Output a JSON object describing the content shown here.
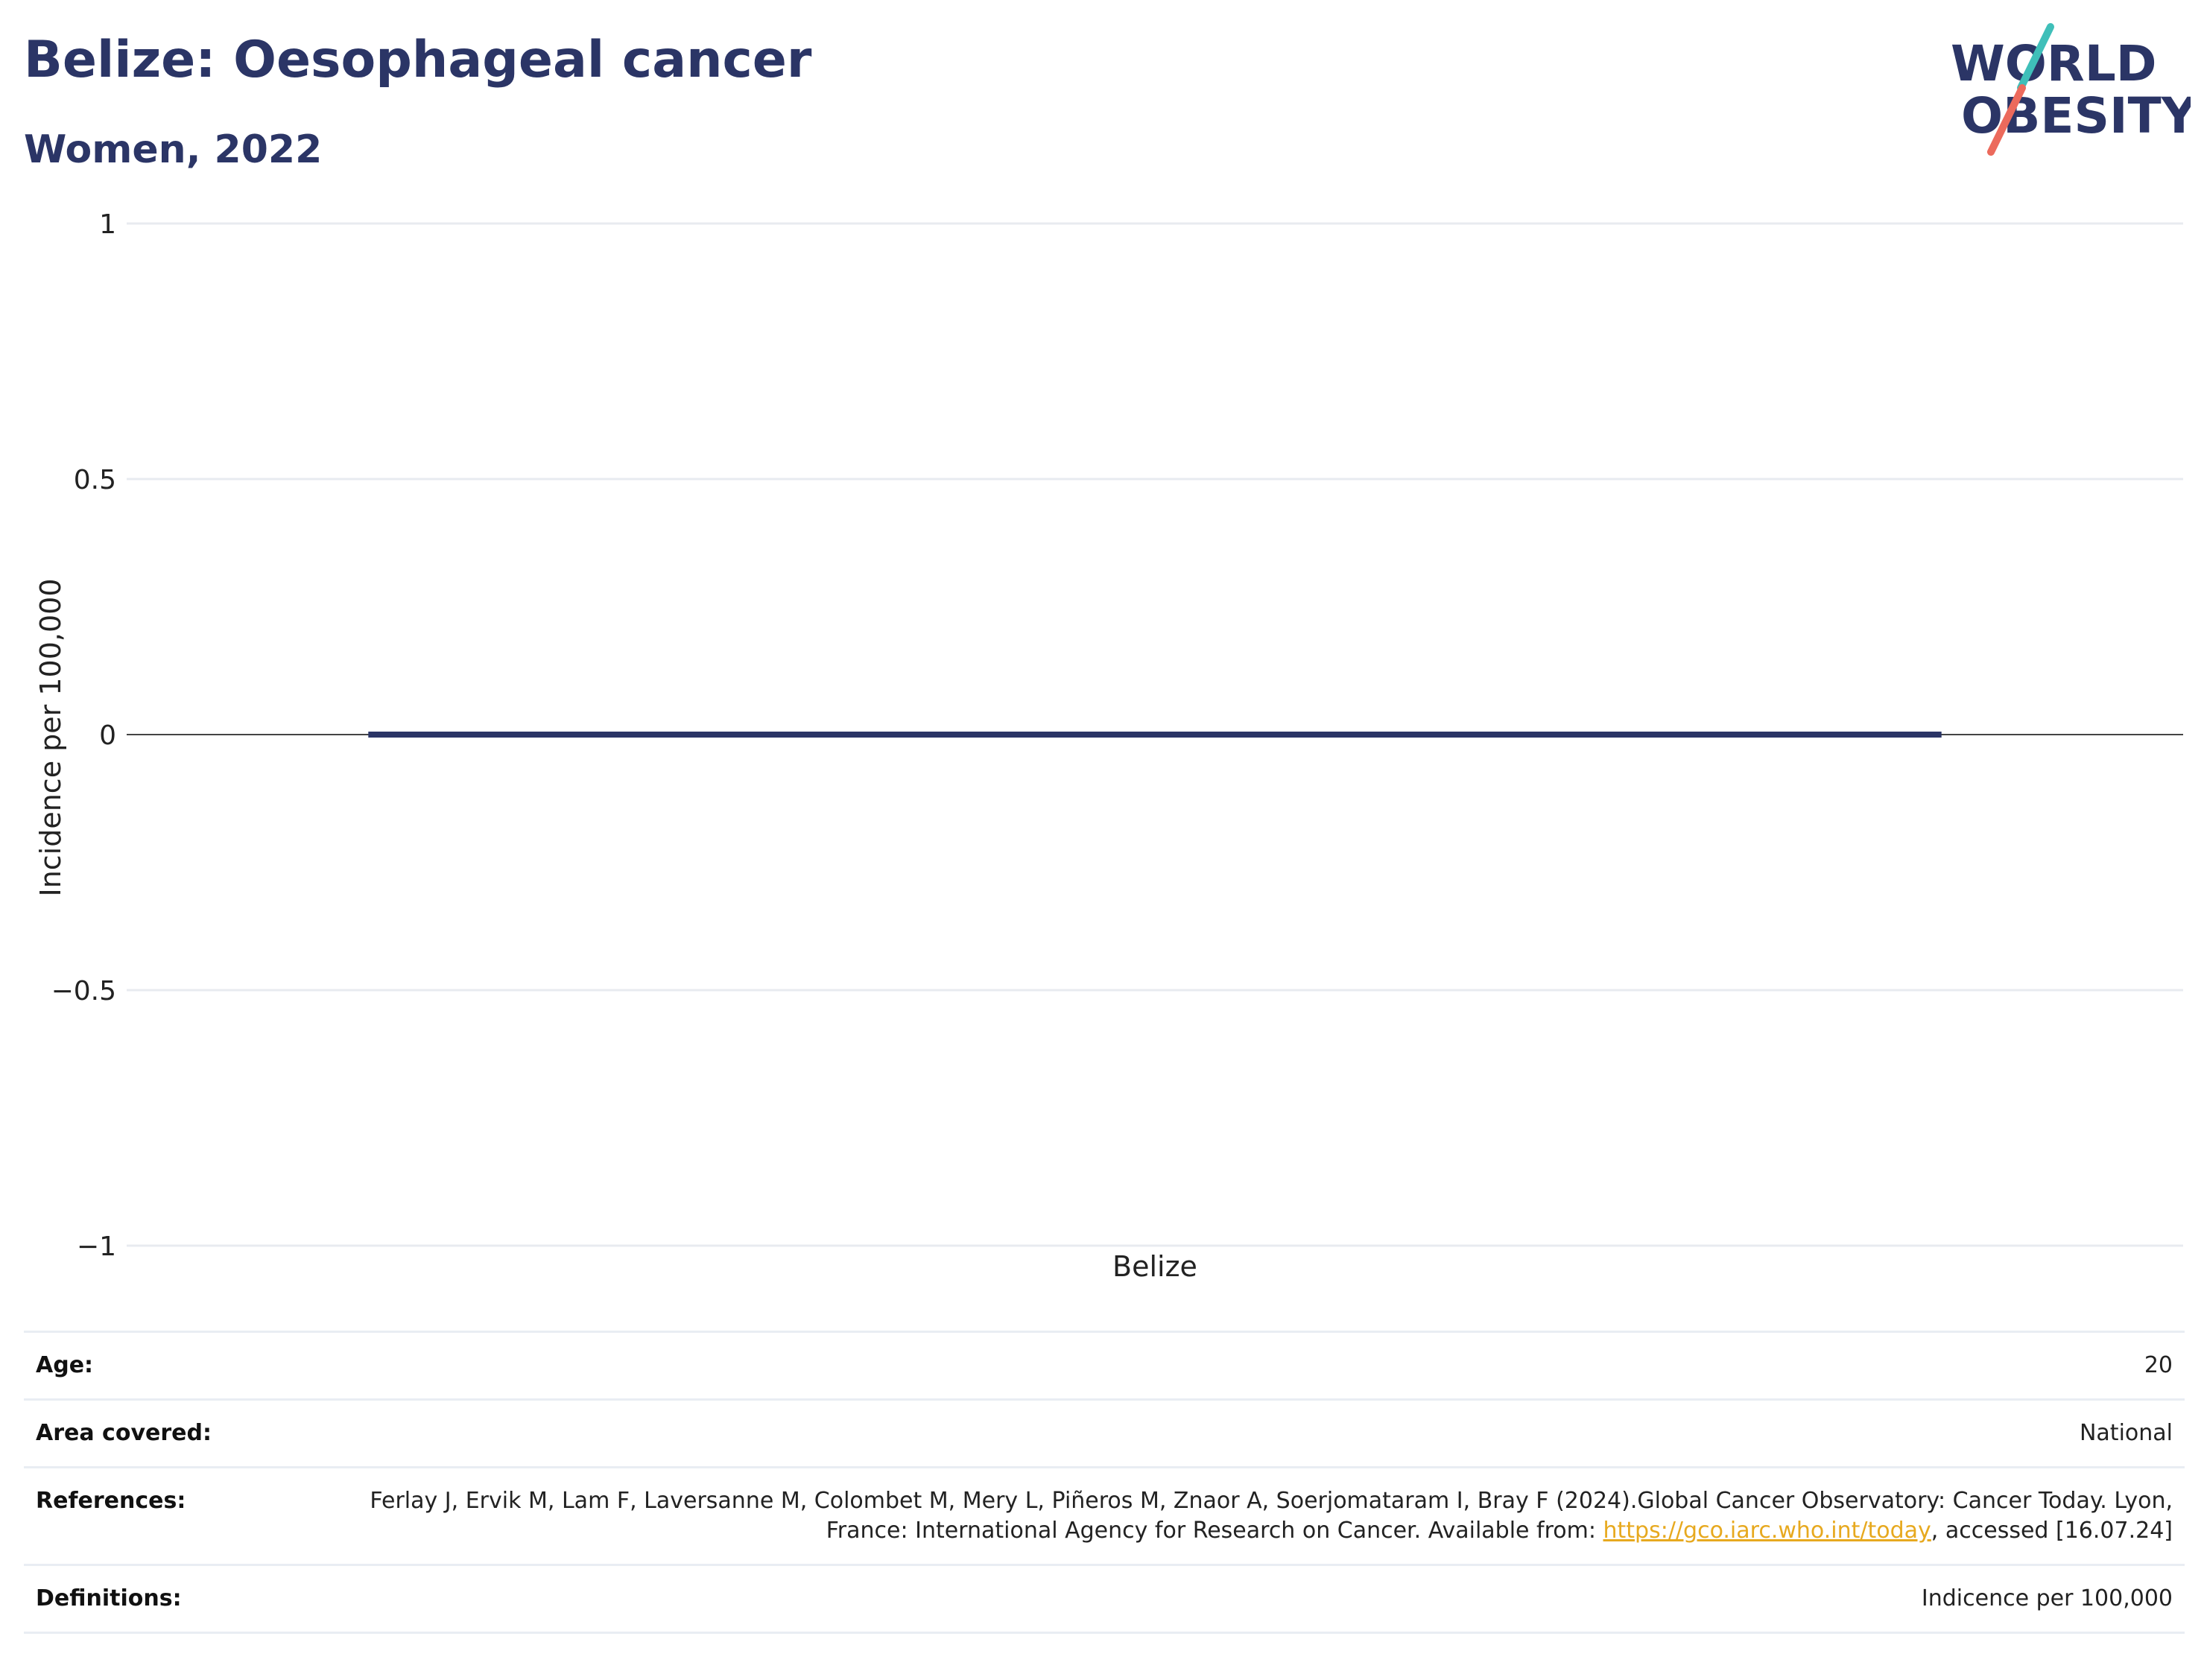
{
  "header": {
    "title": "Belize: Oesophageal cancer",
    "subtitle": "Women, 2022",
    "logo_line1": "WORLD",
    "logo_line2": "OBESITY"
  },
  "colors": {
    "title": "#2b3566",
    "bar": "#2b3566",
    "logo_teal": "#3fbfb9",
    "logo_coral": "#ec6a5c",
    "link": "#e7a91f"
  },
  "chart_data": {
    "type": "bar",
    "categories": [
      "Belize"
    ],
    "values": [
      0
    ],
    "title": "",
    "xlabel": "",
    "ylabel": "Incidence per 100,000",
    "ylim": [
      -1,
      1
    ],
    "yticks": [
      1,
      0.5,
      0,
      -0.5,
      -1
    ],
    "ytick_labels": [
      "1",
      "0.5",
      "0",
      "−0.5",
      "−1"
    ],
    "grid": true,
    "legend": "none"
  },
  "info": {
    "age_label": "Age:",
    "age_value": "20",
    "area_label": "Area covered:",
    "area_value": "National",
    "references_label": "References:",
    "references_text": "Ferlay J, Ervik M, Lam F, Laversanne M, Colombet M, Mery L, Piñeros M, Znaor A, Soerjomataram I, Bray F (2024).Global Cancer Observatory: Cancer Today. Lyon, France: International Agency for Research on Cancer. Available from: ",
    "references_link": "https://gco.iarc.who.int/today",
    "references_suffix": ", accessed [16.07.24]",
    "definitions_label": "Definitions:",
    "definitions_value": "Indicence per 100,000"
  }
}
